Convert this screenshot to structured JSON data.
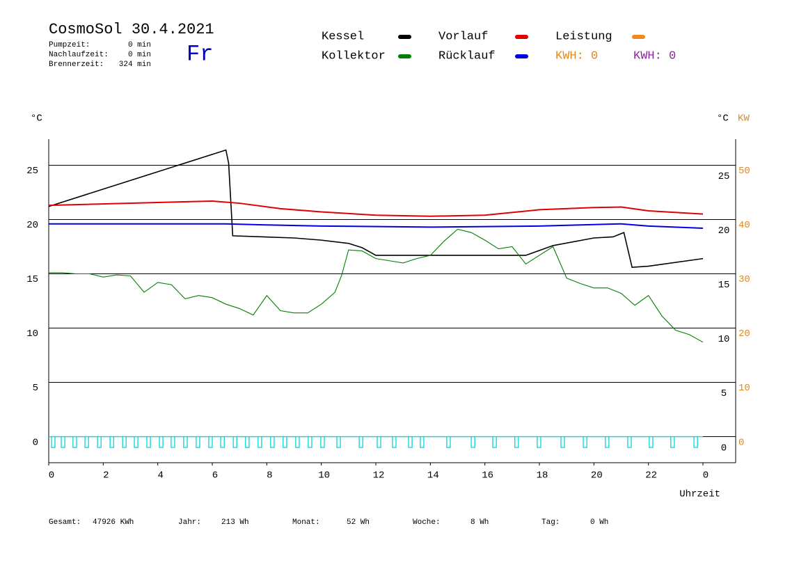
{
  "header": {
    "title": "CosmoSol 30.4.2021",
    "day": "Fr",
    "info": [
      {
        "label": "Pumpzeit:",
        "value": "0 min"
      },
      {
        "label": "Nachlaufzeit:",
        "value": "0 min"
      },
      {
        "label": "Brennerzeit:",
        "value": "324 min"
      }
    ],
    "kwh_labels": [
      {
        "text": "KWH: 0",
        "color": "#e08a1e"
      },
      {
        "text": "KWH: 0",
        "color": "#8a2a9a"
      }
    ]
  },
  "chart_data": {
    "type": "line",
    "y_label": "°C",
    "y2_label": "°C",
    "y3_label": "KW",
    "x_label": "Uhrzeit",
    "xlim": [
      0,
      24
    ],
    "xticks": [
      0,
      2,
      4,
      6,
      8,
      10,
      12,
      14,
      16,
      18,
      20,
      22,
      {
        "value": 24,
        "label": "0"
      }
    ],
    "ylim": [
      -2.4,
      27.4
    ],
    "yticks": [
      0,
      5,
      10,
      15,
      20,
      25
    ],
    "y2lim": [
      -4.8,
      54.8
    ],
    "y2ticks": [
      0,
      10,
      20,
      30,
      40,
      50
    ],
    "y2_color": "#e08a1e",
    "grid": true,
    "series": [
      {
        "name": "Kessel",
        "color": "#000000",
        "x": [
          0,
          6.5,
          6.6,
          6.75,
          9,
          10,
          11,
          11.5,
          12,
          17.5,
          18.5,
          20,
          20.7,
          21.1,
          21.4,
          22,
          24
        ],
        "values": [
          21.2,
          26.4,
          25.2,
          18.5,
          18.3,
          18.1,
          17.8,
          17.4,
          16.7,
          16.7,
          17.6,
          18.3,
          18.4,
          18.8,
          15.6,
          15.7,
          16.4
        ]
      },
      {
        "name": "Vorlauf",
        "color": "#e00000",
        "x": [
          0,
          6,
          7,
          8.5,
          10,
          12,
          14,
          16,
          18,
          20,
          21,
          22,
          24
        ],
        "values": [
          21.3,
          21.7,
          21.5,
          21.0,
          20.7,
          20.4,
          20.3,
          20.4,
          20.9,
          21.1,
          21.15,
          20.8,
          20.5
        ]
      },
      {
        "name": "Leistung",
        "color": "#f08a1e",
        "x": [],
        "values": []
      },
      {
        "name": "Kollektor",
        "color": "#008000",
        "x": [
          0,
          0.5,
          1,
          1.5,
          2,
          2.5,
          3,
          3.5,
          4,
          4.5,
          5,
          5.5,
          6,
          6.5,
          7,
          7.5,
          8,
          8.5,
          9,
          9.5,
          10,
          10.5,
          10.75,
          11,
          11.5,
          12,
          12.5,
          13,
          13.5,
          14,
          14.5,
          15,
          15.5,
          16,
          16.5,
          17,
          17.5,
          18,
          18.5,
          19,
          19.5,
          20,
          20.5,
          21,
          21.5,
          22,
          22.5,
          23,
          23.5,
          24
        ],
        "values": [
          15.1,
          15.1,
          15.0,
          15.0,
          14.7,
          14.9,
          14.8,
          13.3,
          14.2,
          14.0,
          12.7,
          13.0,
          12.8,
          12.2,
          11.8,
          11.2,
          13.0,
          11.6,
          11.4,
          11.4,
          12.2,
          13.3,
          14.9,
          17.2,
          17.1,
          16.4,
          16.2,
          16.0,
          16.4,
          16.7,
          18.0,
          19.1,
          18.8,
          18.1,
          17.3,
          17.5,
          15.9,
          16.7,
          17.5,
          14.6,
          14.1,
          13.7,
          13.7,
          13.2,
          12.1,
          13.0,
          11.1,
          9.8,
          9.4,
          8.7
        ]
      },
      {
        "name": "Rücklauf",
        "color": "#0000e0",
        "x": [
          0,
          6.5,
          8,
          10,
          14,
          18,
          21,
          22,
          24
        ],
        "values": [
          19.6,
          19.6,
          19.5,
          19.4,
          19.3,
          19.4,
          19.6,
          19.4,
          19.2
        ]
      }
    ],
    "pulses": {
      "color": "#00d8d8",
      "width": 0.13,
      "depth": -1.0,
      "x": [
        0.1,
        0.46,
        0.89,
        1.33,
        1.79,
        2.25,
        2.71,
        3.14,
        3.6,
        4.06,
        4.49,
        4.95,
        5.41,
        5.87,
        6.31,
        6.77,
        7.22,
        7.68,
        8.14,
        8.6,
        9.06,
        9.52,
        9.98,
        10.57,
        11.39,
        12.05,
        12.61,
        13.2,
        13.63,
        14.6,
        15.5,
        16.29,
        17.1,
        17.92,
        18.79,
        19.61,
        20.42,
        21.24,
        22.03,
        22.82,
        23.67
      ]
    }
  },
  "footer": [
    {
      "label": "Gesamt:",
      "value": "47926 KWh"
    },
    {
      "label": "Jahr:",
      "value": "213 Wh"
    },
    {
      "label": "Monat:",
      "value": "52 Wh"
    },
    {
      "label": "Woche:",
      "value": "8 Wh"
    },
    {
      "label": "Tag:",
      "value": "0 Wh"
    }
  ]
}
